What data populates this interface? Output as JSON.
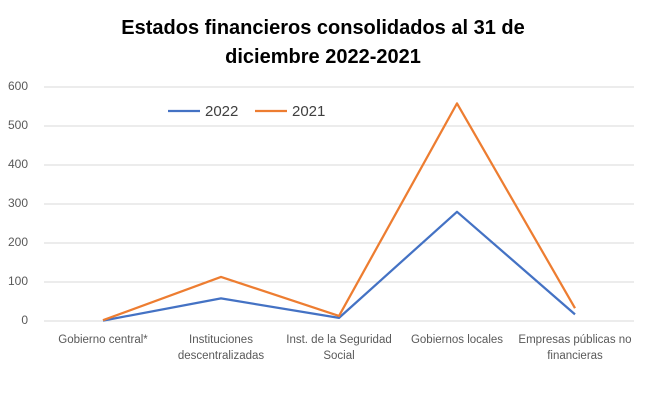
{
  "chart_data": {
    "type": "line",
    "title": "Estados financieros consolidados al 31 de diciembre 2022-2021",
    "categories": [
      "Gobierno central*",
      "Instituciones descentralizadas",
      "Inst. de la Seguridad Social",
      "Gobiernos locales",
      "Empresas públicas no financieras"
    ],
    "series": [
      {
        "name": "2022",
        "color": "#4472c4",
        "values": [
          1,
          58,
          8,
          280,
          17
        ]
      },
      {
        "name": "2021",
        "color": "#ed7d31",
        "values": [
          2,
          113,
          13,
          558,
          33
        ]
      }
    ],
    "ylim": [
      0,
      600
    ],
    "yticks": [
      0,
      100,
      200,
      300,
      400,
      500,
      600
    ],
    "grid": true,
    "legend": "top"
  }
}
